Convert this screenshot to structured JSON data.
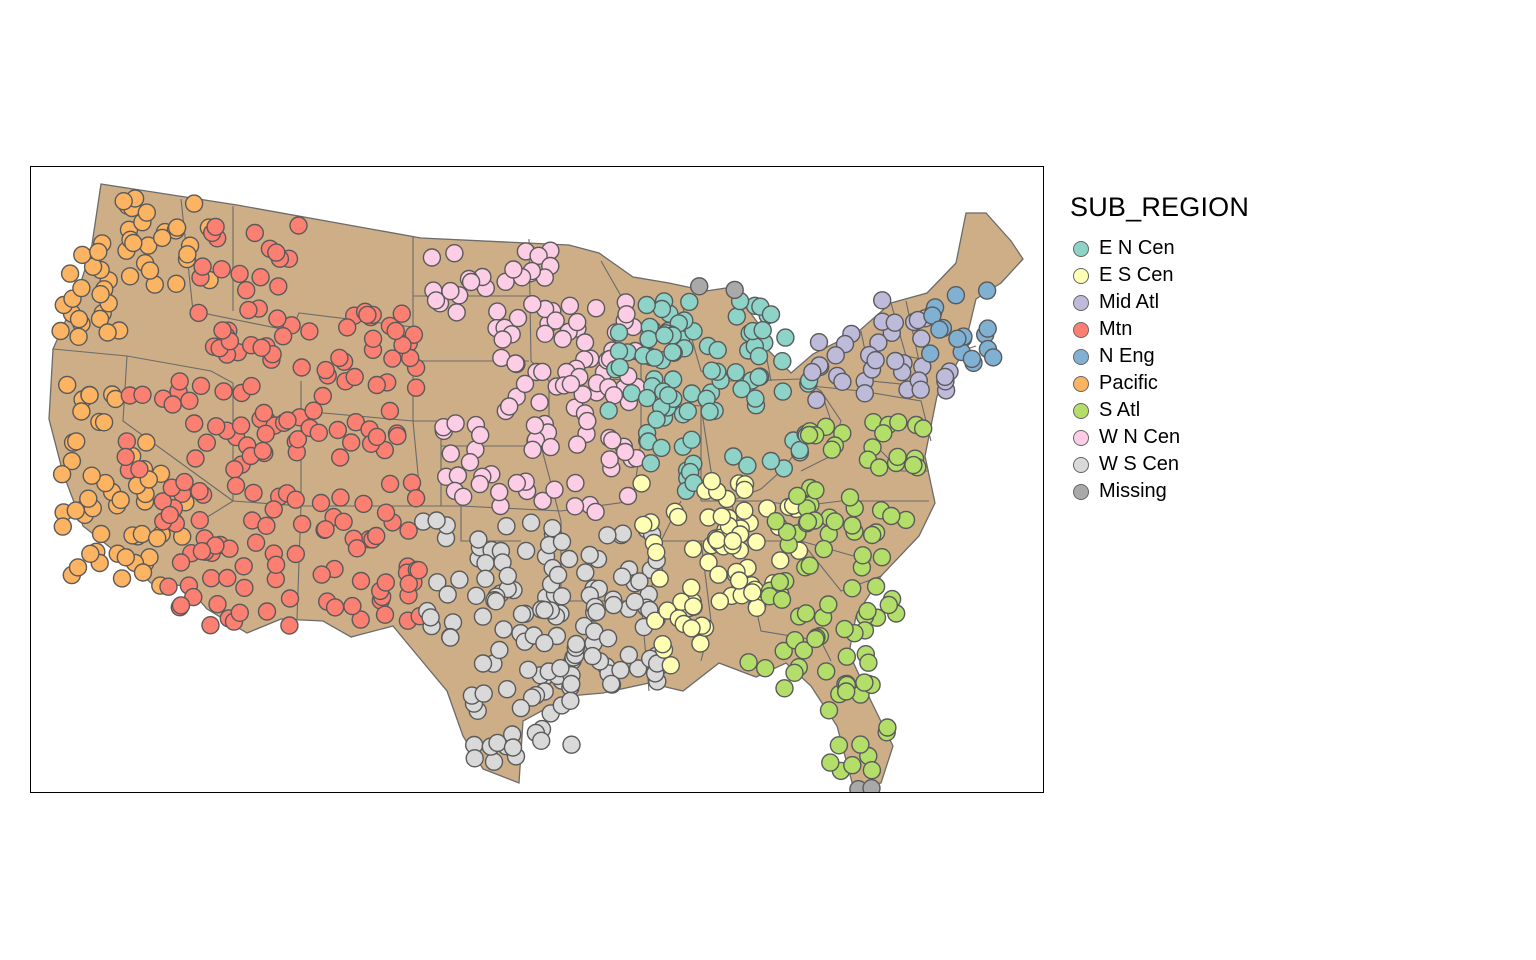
{
  "map": {
    "land_color": "#CDAE86",
    "border_color": "#6b6b6b",
    "point_stroke": "#5a5a5a"
  },
  "legend": {
    "title": "SUB_REGION",
    "items": [
      {
        "label": "E N Cen",
        "color": "#8DD3C7"
      },
      {
        "label": "E S Cen",
        "color": "#FFFFB3"
      },
      {
        "label": "Mid Atl",
        "color": "#BEBADA"
      },
      {
        "label": "Mtn",
        "color": "#FB8072"
      },
      {
        "label": "N Eng",
        "color": "#80B1D3"
      },
      {
        "label": "Pacific",
        "color": "#FDB462"
      },
      {
        "label": "S Atl",
        "color": "#B3DE69"
      },
      {
        "label": "W N Cen",
        "color": "#FCCDE5"
      },
      {
        "label": "W S Cen",
        "color": "#D9D9D9"
      },
      {
        "label": "Missing",
        "color": "#A9A9A9"
      }
    ]
  }
}
